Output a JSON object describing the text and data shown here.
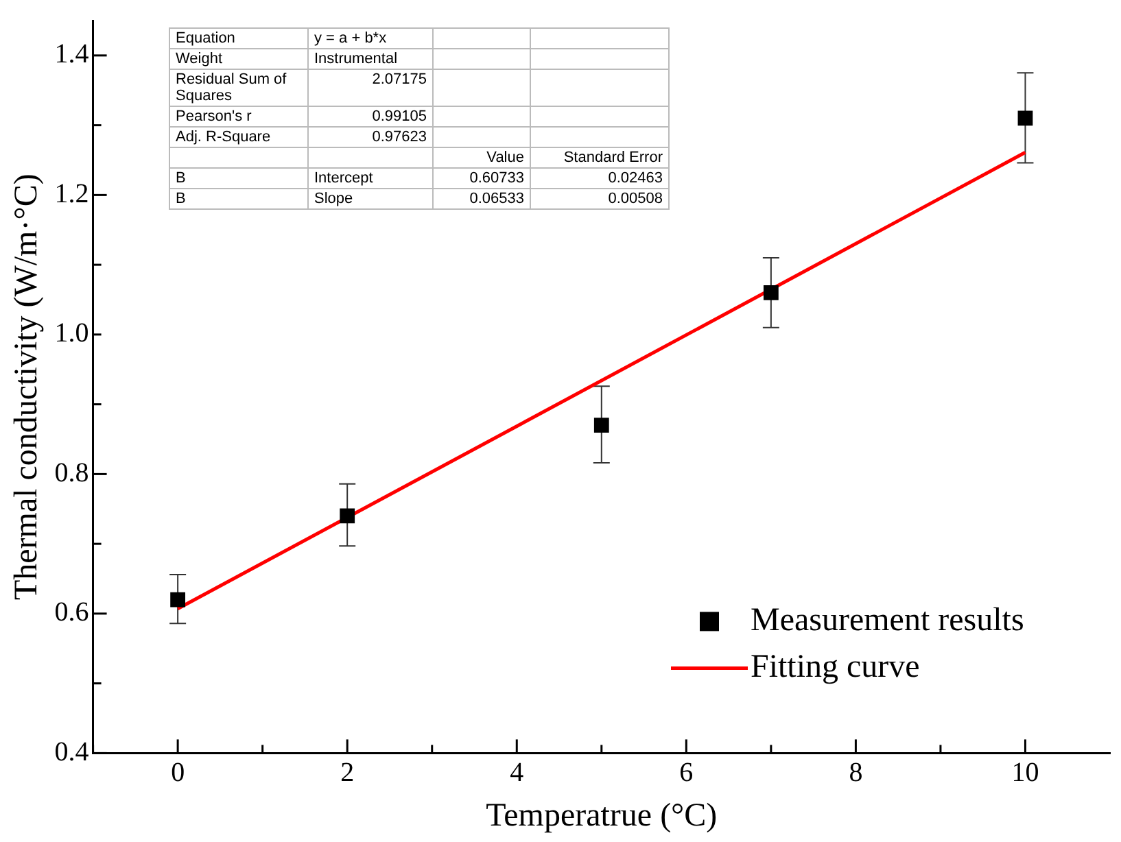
{
  "chart_data": {
    "type": "scatter",
    "xlabel": "Temperatrue (°C)",
    "ylabel": "Thermal conductivity (W/m·°C)",
    "x": [
      0,
      2,
      5,
      7,
      10
    ],
    "series": [
      {
        "type": "scatter",
        "name": "Measurement results",
        "color": "#000000",
        "marker": "square",
        "values": [
          0.62,
          0.74,
          0.87,
          1.06,
          1.31
        ],
        "errors": [
          [
            0.586,
            0.656
          ],
          [
            0.697,
            0.786
          ],
          [
            0.816,
            0.926
          ],
          [
            1.01,
            1.11
          ],
          [
            1.246,
            1.375
          ]
        ]
      },
      {
        "type": "line",
        "name": "Fitting curve",
        "color": "#ff0000",
        "marker": "none",
        "line_style": "solid",
        "x": [
          0,
          10
        ],
        "values": [
          0.607,
          1.261
        ]
      }
    ],
    "xlim": [
      -1,
      11
    ],
    "ylim": [
      0.4,
      1.45
    ],
    "xticks": [
      {
        "value": -1,
        "label": null
      },
      0,
      {
        "value": 1,
        "label": null
      },
      2,
      {
        "value": 3,
        "label": null
      },
      4,
      {
        "value": 5,
        "label": null
      },
      6,
      {
        "value": 7,
        "label": null
      },
      8,
      {
        "value": 9,
        "label": null
      },
      10
    ],
    "yticks": [
      0.4,
      {
        "value": 0.5,
        "label": null
      },
      0.6,
      {
        "value": 0.7,
        "label": null
      },
      0.8,
      {
        "value": 0.9,
        "label": null
      },
      {
        "value": 1,
        "label": "1.0"
      },
      {
        "value": 1.1,
        "label": null
      },
      1.2,
      {
        "value": 1.3,
        "label": null
      },
      1.4
    ],
    "grid": false,
    "legend": "bottom right",
    "annotations": [
      "Equation",
      "y = a + b*x",
      null,
      null,
      "Weight",
      "Instrumental",
      null,
      null,
      "Residual Sum of Squares",
      "2.07175",
      null,
      null,
      "Pearson's r",
      "0.99105",
      null,
      null,
      "Adj. R-Square",
      "0.97623",
      null,
      null,
      null,
      null,
      "Value",
      "Standard Error",
      "B",
      "Intercept",
      "0.60733",
      "0.02463",
      "B",
      "Slope",
      "0.06533",
      "0.00508"
    ]
  }
}
